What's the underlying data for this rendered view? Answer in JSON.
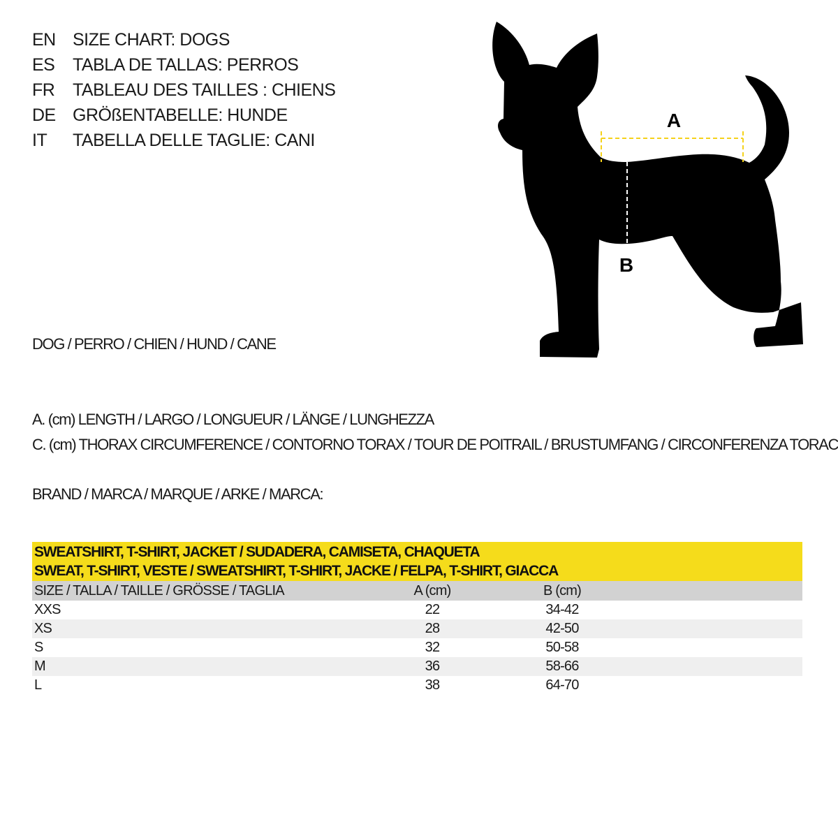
{
  "titles": [
    {
      "code": "EN",
      "text": "SIZE CHART: DOGS"
    },
    {
      "code": "ES",
      "text": "TABLA DE TALLAS: PERROS"
    },
    {
      "code": "FR",
      "text": "TABLEAU DES TAILLES : CHIENS"
    },
    {
      "code": "DE",
      "text": "GRÖßENTABELLE: HUNDE"
    },
    {
      "code": "IT",
      "text": "TABELLA DELLE TAGLIE: CANI"
    }
  ],
  "diagram": {
    "label_a": "A",
    "label_b": "B",
    "accent_color": "#f5d21b"
  },
  "animal_line": "DOG / PERRO / CHIEN / HUND / CANE",
  "legend": {
    "a": "A. (cm) LENGTH / LARGO / LONGUEUR / LÄNGE / LUNGHEZZA",
    "c": "C. (cm) THORAX CIRCUMFERENCE / CONTORNO TORAX / TOUR DE POITRAIL / BRUSTUMFANG / CIRCONFERENZA TORACE"
  },
  "brand_line": "BRAND / MARCA / MARQUE / ARKE / MARCA:",
  "table": {
    "title_line1": "SWEATSHIRT, T-SHIRT, JACKET / SUDADERA, CAMISETA, CHAQUETA",
    "title_line2": "SWEAT, T-SHIRT, VESTE / SWEATSHIRT, T-SHIRT, JACKE / FELPA, T-SHIRT, GIACCA",
    "headers": [
      "SIZE / TALLA / TAILLE / GRÖSSE / TAGLIA",
      "A (cm)",
      "B (cm)"
    ],
    "rows": [
      [
        "XXS",
        "22",
        "34-42"
      ],
      [
        "XS",
        "28",
        "42-50"
      ],
      [
        "S",
        "32",
        "50-58"
      ],
      [
        "M",
        "36",
        "58-66"
      ],
      [
        "L",
        "38",
        "64-70"
      ]
    ],
    "header_color": "#f5dc1b"
  }
}
